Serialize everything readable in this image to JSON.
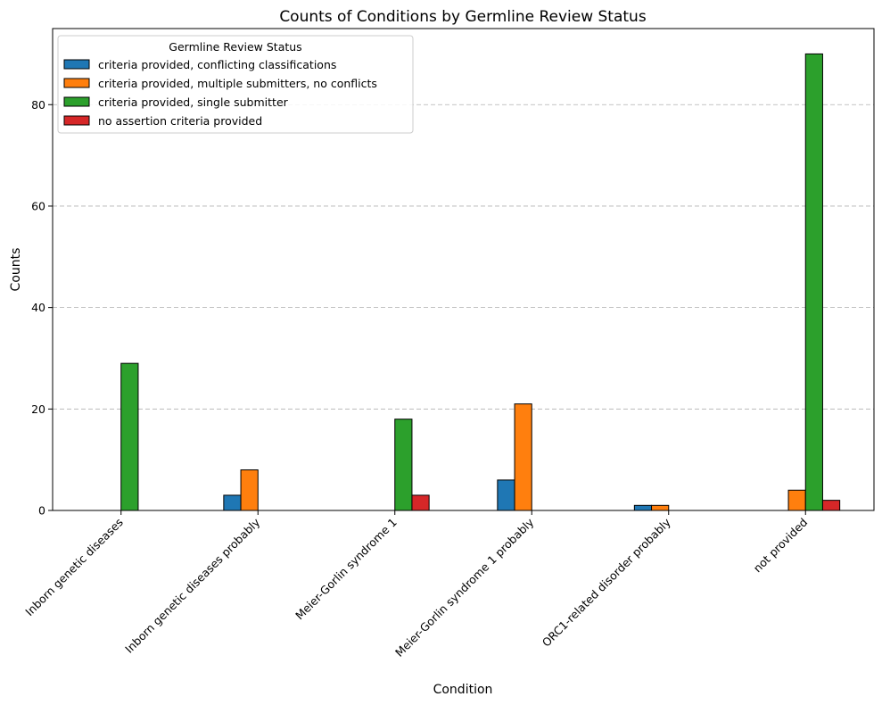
{
  "chart_data": {
    "type": "bar",
    "title": "Counts of Conditions by Germline Review Status",
    "xlabel": "Condition",
    "ylabel": "Counts",
    "ylim": [
      0,
      95
    ],
    "yticks": [
      0,
      20,
      40,
      60,
      80
    ],
    "grid": "y-dashed",
    "legend_title": "Germline Review Status",
    "legend_position": "top-left",
    "categories": [
      "Inborn genetic diseases",
      "Inborn genetic diseases probably",
      "Meier-Gorlin syndrome 1",
      "Meier-Gorlin syndrome 1 probably",
      "ORC1-related disorder probably",
      "not provided"
    ],
    "series": [
      {
        "name": "criteria provided, conflicting classifications",
        "color": "#1f77b4",
        "values": [
          0,
          3,
          0,
          6,
          1,
          0
        ]
      },
      {
        "name": "criteria provided, multiple submitters, no conflicts",
        "color": "#ff7f0e",
        "values": [
          0,
          8,
          0,
          21,
          1,
          4
        ]
      },
      {
        "name": "criteria provided, single submitter",
        "color": "#2ca02c",
        "values": [
          29,
          0,
          18,
          0,
          0,
          90
        ]
      },
      {
        "name": "no assertion criteria provided",
        "color": "#d62728",
        "values": [
          0,
          0,
          3,
          0,
          0,
          2
        ]
      }
    ]
  }
}
